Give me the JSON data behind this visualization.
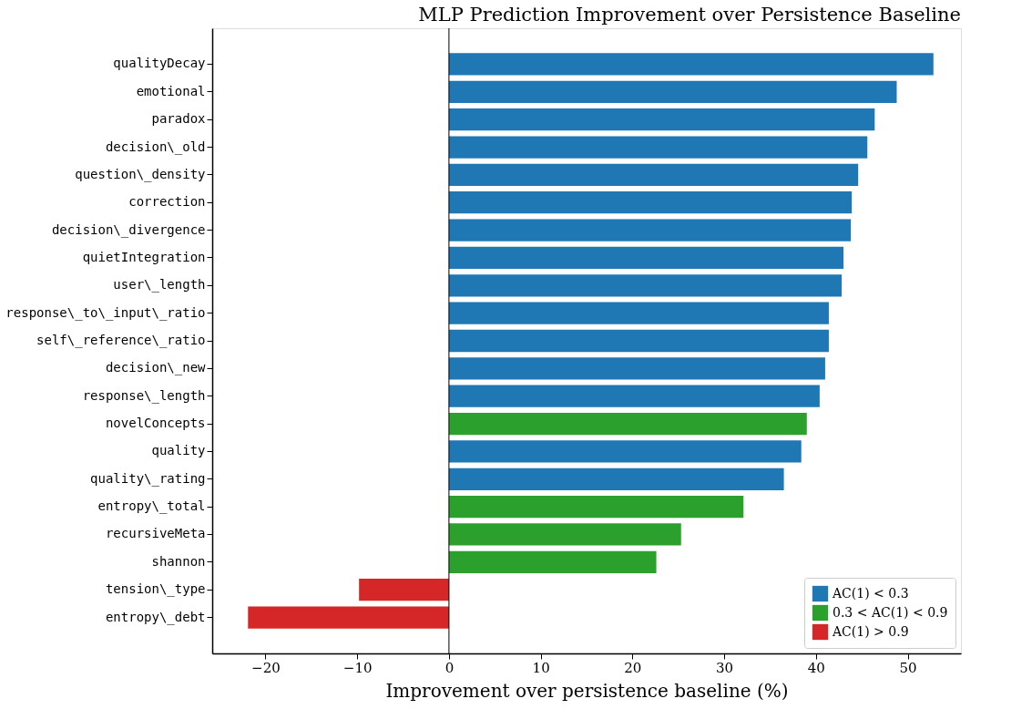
{
  "chart_data": {
    "type": "bar",
    "orientation": "horizontal",
    "title": "MLP Prediction Improvement over Persistence Baseline",
    "xlabel": "Improvement over persistence baseline (%)",
    "categories": [
      "qualityDecay",
      "emotional",
      "paradox",
      "decision\\_old",
      "question\\_density",
      "correction",
      "decision\\_divergence",
      "quietIntegration",
      "user\\_length",
      "response\\_to\\_input\\_ratio",
      "self\\_reference\\_ratio",
      "decision\\_new",
      "response\\_length",
      "novelConcepts",
      "quality",
      "quality\\_rating",
      "entropy\\_total",
      "recursiveMeta",
      "shannon",
      "tension\\_type",
      "entropy\\_debt"
    ],
    "series": [
      {
        "name": "AC(1) < 0.3",
        "color": "#1f77b4",
        "values": [
          52.8,
          48.8,
          46.4,
          45.6,
          44.6,
          43.9,
          43.8,
          43.0,
          42.8,
          41.4,
          41.4,
          41.0,
          40.4,
          null,
          38.4,
          36.5,
          null,
          null,
          null,
          null,
          null
        ]
      },
      {
        "name": "0.3 < AC(1) < 0.9",
        "color": "#2ca02c",
        "values": [
          null,
          null,
          null,
          null,
          null,
          null,
          null,
          null,
          null,
          null,
          null,
          null,
          null,
          39.0,
          null,
          null,
          32.1,
          25.3,
          22.6,
          null,
          null
        ]
      },
      {
        "name": "AC(1) > 0.9",
        "color": "#d62728",
        "values": [
          null,
          null,
          null,
          null,
          null,
          null,
          null,
          null,
          null,
          null,
          null,
          null,
          null,
          null,
          null,
          null,
          null,
          null,
          null,
          -9.8,
          -21.9
        ]
      }
    ],
    "xlim": [
      -25.8,
      55.8
    ],
    "xticks": [
      -20,
      -10,
      0,
      10,
      20,
      30,
      40,
      50
    ],
    "ref_lines": [
      {
        "axis": "x",
        "value": 0,
        "color": "#000000"
      }
    ],
    "legend": "bottom right",
    "grid": false
  }
}
